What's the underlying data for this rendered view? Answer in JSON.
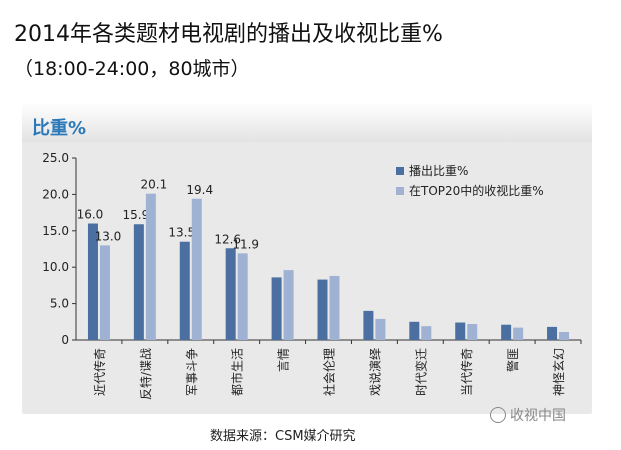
{
  "title": "2014年各类题材电视剧的播出及收视比重%",
  "subtitle": "（18:00-24:00，80城市）",
  "source": "数据来源：CSM媒介研究",
  "watermark": "收视中国",
  "chart_data": {
    "type": "bar",
    "ylabel": "比重%",
    "ylim": [
      0,
      25
    ],
    "yticks": [
      "0",
      "5.0",
      "10.0",
      "15.0",
      "20.0",
      "25.0"
    ],
    "categories": [
      "近代传奇",
      "反特/谍战",
      "军事斗争",
      "都市生活",
      "言情",
      "社会伦理",
      "戏说演绎",
      "时代变迁",
      "当代传奇",
      "警匪",
      "神怪玄幻"
    ],
    "series": [
      {
        "name": "播出比重%",
        "color": "#4a6fa0",
        "values": [
          16.0,
          15.9,
          13.5,
          12.6,
          8.6,
          8.3,
          4.0,
          2.5,
          2.4,
          2.1,
          1.8
        ],
        "labels": [
          "16.0",
          "15.9",
          "13.5",
          "12.6",
          null,
          null,
          null,
          null,
          null,
          null,
          null
        ]
      },
      {
        "name": "在TOP20中的收视比重%",
        "color": "#9fb2d4",
        "values": [
          13.0,
          20.1,
          19.4,
          11.9,
          9.6,
          8.8,
          2.9,
          1.9,
          2.2,
          1.7,
          1.1
        ],
        "labels": [
          "13.0",
          "20.1",
          "19.4",
          "11.9",
          null,
          null,
          null,
          null,
          null,
          null,
          null
        ]
      }
    ],
    "legend_position": "top-right",
    "grid": false
  }
}
